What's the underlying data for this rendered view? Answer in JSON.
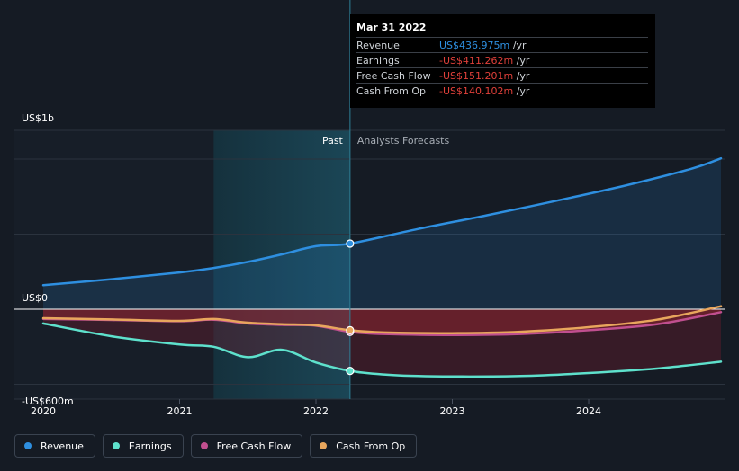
{
  "chart_data": {
    "type": "line",
    "x_unit": "year",
    "x_ticks": [
      "2020",
      "2021",
      "2022",
      "2023",
      "2024"
    ],
    "y_ticks": [
      {
        "value": 1000,
        "label": "US$1b"
      },
      {
        "value": 0,
        "label": "US$0"
      },
      {
        "value": -600,
        "label": "-US$600m"
      }
    ],
    "ylim": [
      -600,
      1200
    ],
    "xlim": [
      2019.83,
      2024.97
    ],
    "past_label": "Past",
    "forecast_label": "Analysts Forecasts",
    "split_x": 2022.25,
    "shade_start_x": 2021.25,
    "series": [
      {
        "name": "Revenue",
        "color": "#2e8fe0",
        "x": [
          2020.0,
          2020.5,
          2021.0,
          2021.25,
          2021.5,
          2021.75,
          2022.0,
          2022.25,
          2022.75,
          2023.25,
          2023.75,
          2024.25,
          2024.75,
          2024.97
        ],
        "values": [
          160,
          200,
          245,
          275,
          315,
          365,
          420,
          437,
          535,
          625,
          720,
          820,
          935,
          1005
        ]
      },
      {
        "name": "Earnings",
        "color": "#5ee1cc",
        "x": [
          2020.0,
          2020.5,
          2021.0,
          2021.25,
          2021.5,
          2021.75,
          2022.0,
          2022.25,
          2022.5,
          2022.75,
          2023.0,
          2023.5,
          2024.0,
          2024.5,
          2024.97
        ],
        "values": [
          -95,
          -180,
          -235,
          -250,
          -320,
          -270,
          -355,
          -411,
          -435,
          -445,
          -448,
          -445,
          -425,
          -395,
          -350
        ]
      },
      {
        "name": "Free Cash Flow",
        "color": "#c04f8f",
        "x": [
          2020.0,
          2020.5,
          2021.0,
          2021.25,
          2021.5,
          2021.75,
          2022.0,
          2022.25,
          2022.5,
          2023.0,
          2023.5,
          2024.0,
          2024.5,
          2024.97
        ],
        "values": [
          -65,
          -72,
          -80,
          -70,
          -95,
          -105,
          -110,
          -151,
          -165,
          -172,
          -165,
          -140,
          -100,
          -20
        ]
      },
      {
        "name": "Cash From Op",
        "color": "#e8a65d",
        "x": [
          2020.0,
          2020.5,
          2021.0,
          2021.25,
          2021.5,
          2021.75,
          2022.0,
          2022.25,
          2022.5,
          2023.0,
          2023.5,
          2024.0,
          2024.5,
          2024.97
        ],
        "values": [
          -60,
          -68,
          -78,
          -65,
          -90,
          -100,
          -108,
          -140,
          -155,
          -160,
          -150,
          -120,
          -70,
          20
        ]
      }
    ]
  },
  "tooltip": {
    "date": "Mar 31 2022",
    "rows": [
      {
        "label": "Revenue",
        "value": "US$436.975m",
        "unit": " /yr",
        "color": "#2e8fe0"
      },
      {
        "label": "Earnings",
        "value": "-US$411.262m",
        "unit": " /yr",
        "color": "#e0403a"
      },
      {
        "label": "Free Cash Flow",
        "value": "-US$151.201m",
        "unit": " /yr",
        "color": "#e0403a"
      },
      {
        "label": "Cash From Op",
        "value": "-US$140.102m",
        "unit": " /yr",
        "color": "#e0403a"
      }
    ]
  },
  "legend": [
    {
      "label": "Revenue",
      "color": "#2e8fe0"
    },
    {
      "label": "Earnings",
      "color": "#5ee1cc"
    },
    {
      "label": "Free Cash Flow",
      "color": "#c04f8f"
    },
    {
      "label": "Cash From Op",
      "color": "#e8a65d"
    }
  ]
}
